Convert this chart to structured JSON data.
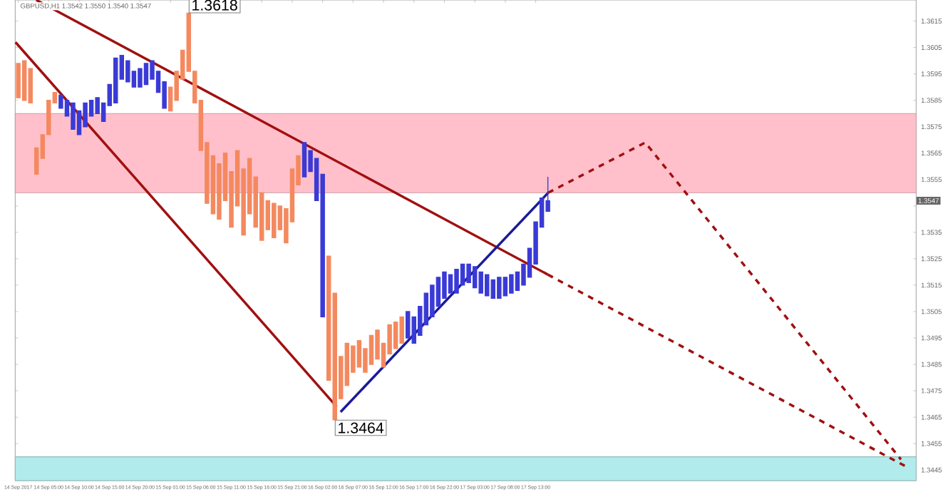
{
  "chart_data": {
    "type": "candlestick",
    "title": "GBPUSD,H1 1.3542 1.3550 1.3540 1.3547",
    "xlim": [
      "2017-09-13T23:30",
      "2017-09-20T03:30"
    ],
    "xticks": [
      {
        "value": "2017-09-14T00:00",
        "label": "14 Sep 2017"
      },
      {
        "value": "2017-09-14T05:00",
        "label": "14 Sep 05:00"
      },
      {
        "value": "2017-09-14T10:00",
        "label": "14 Sep 10:00"
      },
      {
        "value": "2017-09-14T15:00",
        "label": "14 Sep 15:00"
      },
      {
        "value": "2017-09-14T20:00",
        "label": "14 Sep 20:00"
      },
      {
        "value": "2017-09-15T01:00",
        "label": "15 Sep 01:00"
      },
      {
        "value": "2017-09-15T06:00",
        "label": "15 Sep 06:00"
      },
      {
        "value": "2017-09-15T11:00",
        "label": "15 Sep 11:00"
      },
      {
        "value": "2017-09-15T16:00",
        "label": "15 Sep 16:00"
      },
      {
        "value": "2017-09-15T21:00",
        "label": "15 Sep 21:00"
      },
      {
        "value": "2017-09-16T02:00",
        "label": "16 Sep 02:00"
      },
      {
        "value": "2017-09-16T07:00",
        "label": "16 Sep 07:00"
      },
      {
        "value": "2017-09-16T12:00",
        "label": "16 Sep 12:00"
      },
      {
        "value": "2017-09-16T17:00",
        "label": "16 Sep 17:00"
      },
      {
        "value": "2017-09-16T22:00",
        "label": "16 Sep 22:00"
      },
      {
        "value": "2017-09-17T03:00",
        "label": "17 Sep 03:00"
      },
      {
        "value": "2017-09-17T08:00",
        "label": "17 Sep 08:00"
      },
      {
        "value": "2017-09-17T13:00",
        "label": "17 Sep 13:00"
      }
    ],
    "ylim": [
      1.3441,
      1.3623
    ],
    "yticks": [
      1.3445,
      1.3455,
      1.3465,
      1.3475,
      1.3485,
      1.3495,
      1.3505,
      1.3515,
      1.3525,
      1.3535,
      {
        "value": 1.3545,
        "label": null
      },
      1.3555,
      1.3565,
      1.3575,
      1.3585,
      1.3595,
      1.3605,
      1.3615
    ],
    "bands": [
      {
        "axis": "y",
        "from": 1.355,
        "to": 1.358,
        "color": "#ffc0cb"
      },
      {
        "axis": "y",
        "from": 1.3441,
        "to": 1.345,
        "color": "#b2ebeb"
      }
    ],
    "annotations": [
      {
        "text": "1.3618",
        "x": "2017-09-15T04:00",
        "y": 1.3618
      },
      {
        "text": "1.3464",
        "x": "2017-09-16T04:00",
        "y": 1.3464
      },
      {
        "text": "1.3547",
        "y": 1.3547
      }
    ],
    "x": [
      "2017-09-14T00:00",
      "2017-09-14T01:00",
      "2017-09-14T02:00",
      "2017-09-14T03:00",
      "2017-09-14T04:00",
      "2017-09-14T05:00",
      "2017-09-14T06:00",
      "2017-09-14T07:00",
      "2017-09-14T08:00",
      "2017-09-14T09:00",
      "2017-09-14T10:00",
      "2017-09-14T11:00",
      "2017-09-14T12:00",
      "2017-09-14T13:00",
      "2017-09-14T14:00",
      "2017-09-14T15:00",
      "2017-09-14T16:00",
      "2017-09-14T17:00",
      "2017-09-14T18:00",
      "2017-09-14T19:00",
      "2017-09-14T20:00",
      "2017-09-14T21:00",
      "2017-09-14T22:00",
      "2017-09-14T23:00",
      "2017-09-15T00:00",
      "2017-09-15T01:00",
      "2017-09-15T02:00",
      "2017-09-15T03:00",
      "2017-09-15T04:00",
      "2017-09-15T05:00",
      "2017-09-15T06:00",
      "2017-09-15T07:00",
      "2017-09-15T08:00",
      "2017-09-15T09:00",
      "2017-09-15T10:00",
      "2017-09-15T11:00",
      "2017-09-15T12:00",
      "2017-09-15T13:00",
      "2017-09-15T14:00",
      "2017-09-15T15:00",
      "2017-09-15T16:00",
      "2017-09-15T17:00",
      "2017-09-15T18:00",
      "2017-09-15T19:00",
      "2017-09-15T20:00",
      "2017-09-15T21:00",
      "2017-09-15T22:00",
      "2017-09-15T23:00",
      "2017-09-16T00:00",
      "2017-09-16T01:00",
      "2017-09-16T02:00",
      "2017-09-16T03:00",
      "2017-09-16T04:00",
      "2017-09-16T05:00",
      "2017-09-16T06:00",
      "2017-09-16T07:00",
      "2017-09-16T08:00",
      "2017-09-16T09:00",
      "2017-09-16T10:00",
      "2017-09-16T11:00",
      "2017-09-16T12:00",
      "2017-09-16T13:00",
      "2017-09-16T14:00",
      "2017-09-16T15:00",
      "2017-09-16T16:00",
      "2017-09-16T17:00",
      "2017-09-16T18:00",
      "2017-09-16T19:00",
      "2017-09-16T20:00",
      "2017-09-16T21:00",
      "2017-09-16T22:00",
      "2017-09-16T23:00",
      "2017-09-17T00:00",
      "2017-09-17T01:00",
      "2017-09-17T02:00",
      "2017-09-17T03:00",
      "2017-09-17T04:00",
      "2017-09-17T05:00",
      "2017-09-17T06:00",
      "2017-09-17T07:00",
      "2017-09-17T08:00",
      "2017-09-17T09:00",
      "2017-09-17T10:00",
      "2017-09-17T11:00",
      "2017-09-17T12:00",
      "2017-09-17T13:00",
      "2017-09-17T14:00",
      "2017-09-17T15:00"
    ],
    "ohlc": [
      [
        1.3599,
        1.3599,
        1.3586,
        1.3586
      ],
      [
        1.36,
        1.36,
        1.3585,
        1.3585
      ],
      [
        1.3597,
        1.3597,
        1.3584,
        1.3584
      ],
      [
        1.3567,
        1.3567,
        1.3557,
        1.3557
      ],
      [
        1.3572,
        1.3572,
        1.3563,
        1.3563
      ],
      [
        1.3585,
        1.3585,
        1.3572,
        1.3572
      ],
      [
        1.3588,
        1.3588,
        1.3584,
        1.3584
      ],
      [
        1.3582,
        1.3587,
        1.3582,
        1.3587
      ],
      [
        1.3579,
        1.3585,
        1.3579,
        1.3585
      ],
      [
        1.3574,
        1.3584,
        1.3574,
        1.3584
      ],
      [
        1.3572,
        1.3581,
        1.3572,
        1.3581
      ],
      [
        1.3575,
        1.3584,
        1.3575,
        1.3584
      ],
      [
        1.3579,
        1.3585,
        1.3579,
        1.3585
      ],
      [
        1.358,
        1.3586,
        1.358,
        1.3586
      ],
      [
        1.3577,
        1.3584,
        1.3577,
        1.3584
      ],
      [
        1.3583,
        1.3591,
        1.3583,
        1.3591
      ],
      [
        1.3584,
        1.3601,
        1.3584,
        1.3601
      ],
      [
        1.3593,
        1.3602,
        1.3593,
        1.3602
      ],
      [
        1.3592,
        1.36,
        1.3592,
        1.36
      ],
      [
        1.359,
        1.3596,
        1.359,
        1.3596
      ],
      [
        1.359,
        1.3597,
        1.359,
        1.3597
      ],
      [
        1.3591,
        1.3599,
        1.3591,
        1.3599
      ],
      [
        1.3593,
        1.36,
        1.3593,
        1.36
      ],
      [
        1.3588,
        1.3596,
        1.3588,
        1.3596
      ],
      [
        1.3582,
        1.3592,
        1.3582,
        1.3592
      ],
      [
        1.359,
        1.359,
        1.3581,
        1.3581
      ],
      [
        1.3596,
        1.3596,
        1.3585,
        1.3585
      ],
      [
        1.3604,
        1.3604,
        1.3593,
        1.3593
      ],
      [
        1.3618,
        1.3618,
        1.3596,
        1.3596
      ],
      [
        1.3596,
        1.3596,
        1.3584,
        1.3584
      ],
      [
        1.3585,
        1.3585,
        1.3566,
        1.3566
      ],
      [
        1.3569,
        1.3569,
        1.3546,
        1.3546
      ],
      [
        1.3564,
        1.3564,
        1.3542,
        1.3542
      ],
      [
        1.3561,
        1.3561,
        1.354,
        1.354
      ],
      [
        1.3565,
        1.3565,
        1.3547,
        1.3547
      ],
      [
        1.3558,
        1.3558,
        1.3537,
        1.3537
      ],
      [
        1.3566,
        1.3566,
        1.3545,
        1.3545
      ],
      [
        1.3559,
        1.3559,
        1.3534,
        1.3534
      ],
      [
        1.3563,
        1.3563,
        1.3542,
        1.3542
      ],
      [
        1.3556,
        1.3556,
        1.3537,
        1.3537
      ],
      [
        1.355,
        1.355,
        1.3532,
        1.3532
      ],
      [
        1.3547,
        1.3547,
        1.3536,
        1.3536
      ],
      [
        1.3546,
        1.3546,
        1.3533,
        1.3533
      ],
      [
        1.3545,
        1.3545,
        1.3536,
        1.3536
      ],
      [
        1.3544,
        1.3544,
        1.3531,
        1.3531
      ],
      [
        1.3559,
        1.3559,
        1.3539,
        1.3539
      ],
      [
        1.3564,
        1.3564,
        1.3553,
        1.3553
      ],
      [
        1.3556,
        1.3569,
        1.3556,
        1.3569
      ],
      [
        1.3558,
        1.3566,
        1.3558,
        1.3566
      ],
      [
        1.3547,
        1.3563,
        1.3547,
        1.3563
      ],
      [
        1.3503,
        1.3557,
        1.3503,
        1.3557
      ],
      [
        1.3526,
        1.3526,
        1.3479,
        1.3479
      ],
      [
        1.3512,
        1.3512,
        1.3464,
        1.3464
      ],
      [
        1.3488,
        1.3488,
        1.3472,
        1.3472
      ],
      [
        1.3493,
        1.3493,
        1.3477,
        1.3477
      ],
      [
        1.3492,
        1.3492,
        1.3482,
        1.3482
      ],
      [
        1.3494,
        1.3494,
        1.3484,
        1.3484
      ],
      [
        1.3491,
        1.3491,
        1.3482,
        1.3482
      ],
      [
        1.3496,
        1.3496,
        1.3485,
        1.3485
      ],
      [
        1.3498,
        1.3498,
        1.3487,
        1.3487
      ],
      [
        1.3493,
        1.3493,
        1.3484,
        1.3484
      ],
      [
        1.35,
        1.35,
        1.3489,
        1.3489
      ],
      [
        1.3501,
        1.3501,
        1.3491,
        1.3491
      ],
      [
        1.3503,
        1.3503,
        1.3493,
        1.3493
      ],
      [
        1.3495,
        1.3505,
        1.3495,
        1.3505
      ],
      [
        1.3493,
        1.3503,
        1.3493,
        1.3503
      ],
      [
        1.3496,
        1.3507,
        1.3496,
        1.3507
      ],
      [
        1.35,
        1.3512,
        1.35,
        1.3512
      ],
      [
        1.3503,
        1.3515,
        1.3503,
        1.3515
      ],
      [
        1.3507,
        1.3518,
        1.3507,
        1.3518
      ],
      [
        1.351,
        1.352,
        1.351,
        1.352
      ],
      [
        1.3512,
        1.3519,
        1.3512,
        1.3519
      ],
      [
        1.3512,
        1.3521,
        1.3512,
        1.3521
      ],
      [
        1.3515,
        1.3523,
        1.3515,
        1.3523
      ],
      [
        1.3516,
        1.3523,
        1.3516,
        1.3523
      ],
      [
        1.3514,
        1.3522,
        1.3514,
        1.3522
      ],
      [
        1.3512,
        1.352,
        1.3512,
        1.352
      ],
      [
        1.3511,
        1.3519,
        1.3511,
        1.3519
      ],
      [
        1.351,
        1.3517,
        1.351,
        1.3517
      ],
      [
        1.351,
        1.3518,
        1.351,
        1.3518
      ],
      [
        1.3511,
        1.3518,
        1.3511,
        1.3518
      ],
      [
        1.3512,
        1.3519,
        1.3512,
        1.3519
      ],
      [
        1.3513,
        1.352,
        1.3513,
        1.352
      ],
      [
        1.3515,
        1.3523,
        1.3515,
        1.3523
      ],
      [
        1.3518,
        1.3529,
        1.3518,
        1.3529
      ],
      [
        1.3523,
        1.3539,
        1.3523,
        1.3539
      ],
      [
        1.3537,
        1.3548,
        1.3537,
        1.3548
      ],
      [
        1.3543,
        1.3556,
        1.3543,
        1.3547
      ]
    ],
    "colors": [
      "#f4895f",
      "#f4895f",
      "#f4895f",
      "#f4895f",
      "#f4895f",
      "#f4895f",
      "#f4895f",
      "#3a3ad6",
      "#3a3ad6",
      "#3a3ad6",
      "#3a3ad6",
      "#3a3ad6",
      "#3a3ad6",
      "#3a3ad6",
      "#3a3ad6",
      "#3a3ad6",
      "#3a3ad6",
      "#3a3ad6",
      "#3a3ad6",
      "#3a3ad6",
      "#3a3ad6",
      "#3a3ad6",
      "#3a3ad6",
      "#3a3ad6",
      "#3a3ad6",
      "#f4895f",
      "#f4895f",
      "#f4895f",
      "#f4895f",
      "#f4895f",
      "#f4895f",
      "#f4895f",
      "#f4895f",
      "#f4895f",
      "#f4895f",
      "#f4895f",
      "#f4895f",
      "#f4895f",
      "#f4895f",
      "#f4895f",
      "#f4895f",
      "#f4895f",
      "#f4895f",
      "#f4895f",
      "#f4895f",
      "#f4895f",
      "#f4895f",
      "#3a3ad6",
      "#3a3ad6",
      "#3a3ad6",
      "#3a3ad6",
      "#f4895f",
      "#f4895f",
      "#f4895f",
      "#f4895f",
      "#f4895f",
      "#f4895f",
      "#f4895f",
      "#f4895f",
      "#f4895f",
      "#f4895f",
      "#f4895f",
      "#f4895f",
      "#f4895f",
      "#3a3ad6",
      "#3a3ad6",
      "#3a3ad6",
      "#3a3ad6",
      "#3a3ad6",
      "#3a3ad6",
      "#3a3ad6",
      "#3a3ad6",
      "#3a3ad6",
      "#3a3ad6",
      "#3a3ad6",
      "#3a3ad6",
      "#3a3ad6",
      "#3a3ad6",
      "#3a3ad6",
      "#3a3ad6",
      "#3a3ad6",
      "#3a3ad6",
      "#3a3ad6",
      "#3a3ad6",
      "#3a3ad6",
      "#3a3ad6",
      "#3a3ad6",
      "#3a3ad6"
    ],
    "series": [
      {
        "type": "line",
        "x": [
          "2017-09-14T02:57",
          "2017-09-17T15:00"
        ],
        "values": [
          1.3623,
          1.3519
        ],
        "color": "#a01010",
        "line_style": "solid"
      },
      {
        "type": "line",
        "x": [
          "2017-09-17T15:00",
          "2017-09-20T02:06"
        ],
        "values": [
          1.3519,
          1.3446
        ],
        "color": "#a01010",
        "line_style": "dashed"
      },
      {
        "type": "line",
        "x": [
          "2017-09-13T23:33",
          "2017-09-16T04:18"
        ],
        "values": [
          1.3607,
          1.3469
        ],
        "color": "#a01010",
        "line_style": "solid"
      },
      {
        "type": "line",
        "x": [
          "2017-09-16T04:57",
          "2017-09-17T15:03"
        ],
        "values": [
          1.3467,
          1.355
        ],
        "color": "#1a1a9a",
        "line_style": "solid"
      },
      {
        "type": "line",
        "x": [
          "2017-09-17T15:03",
          "2017-09-18T07:00",
          "2017-09-20T01:00"
        ],
        "values": [
          1.355,
          1.3569,
          1.3449
        ],
        "color": "#a01010",
        "line_style": "dashed"
      }
    ]
  }
}
